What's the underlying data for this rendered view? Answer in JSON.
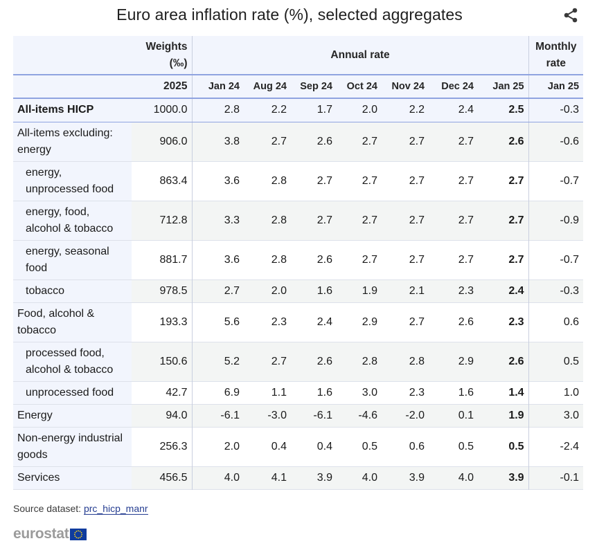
{
  "title": "Euro area inflation rate (%), selected aggregates",
  "icons": {
    "share": "share-icon",
    "flag": "eu-flag-icon"
  },
  "colors": {
    "header_bg": "#f2f5fd",
    "rule": "#8fa3e0",
    "shade": "#f3f5f4",
    "link": "#253d91"
  },
  "header": {
    "weights_label_1": "Weights",
    "weights_label_2": "(‰)",
    "annual_label": "Annual rate",
    "monthly_label_1": "Monthly",
    "monthly_label_2": "rate",
    "weights_year": "2025",
    "columns": [
      "Jan 24",
      "Aug 24",
      "Sep 24",
      "Oct 24",
      "Nov 24",
      "Dec 24",
      "Jan 25",
      "Jan 25"
    ]
  },
  "chart_data": {
    "type": "table",
    "title": "Euro area inflation rate (%), selected aggregates",
    "columns": [
      "Weights (‰) 2025",
      "Jan 24",
      "Aug 24",
      "Sep 24",
      "Oct 24",
      "Nov 24",
      "Dec 24",
      "Jan 25",
      "Monthly rate Jan 25"
    ],
    "rows": [
      {
        "label_1": "All-items HICP",
        "label_2": "",
        "level": "top",
        "values": [
          "1000.0",
          "2.8",
          "2.2",
          "1.7",
          "2.0",
          "2.2",
          "2.4",
          "2.5",
          "-0.3"
        ]
      },
      {
        "label_1": "All-items excluding:",
        "label_2": "energy",
        "level": "group",
        "values": [
          "906.0",
          "3.8",
          "2.7",
          "2.6",
          "2.7",
          "2.7",
          "2.7",
          "2.6",
          "-0.6"
        ]
      },
      {
        "label_1": "energy,",
        "label_2": "unprocessed food",
        "level": "sub",
        "values": [
          "863.4",
          "3.6",
          "2.8",
          "2.7",
          "2.7",
          "2.7",
          "2.7",
          "2.7",
          "-0.7"
        ]
      },
      {
        "label_1": "energy, food,",
        "label_2": "alcohol & tobacco",
        "level": "sub",
        "values": [
          "712.8",
          "3.3",
          "2.8",
          "2.7",
          "2.7",
          "2.7",
          "2.7",
          "2.7",
          "-0.9"
        ]
      },
      {
        "label_1": "energy, seasonal",
        "label_2": "food",
        "level": "sub",
        "values": [
          "881.7",
          "3.6",
          "2.8",
          "2.6",
          "2.7",
          "2.7",
          "2.7",
          "2.7",
          "-0.7"
        ]
      },
      {
        "label_1": "tobacco",
        "label_2": "",
        "level": "sub",
        "values": [
          "978.5",
          "2.7",
          "2.0",
          "1.6",
          "1.9",
          "2.1",
          "2.3",
          "2.4",
          "-0.3"
        ]
      },
      {
        "label_1": "Food, alcohol &",
        "label_2": "tobacco",
        "level": "group",
        "values": [
          "193.3",
          "5.6",
          "2.3",
          "2.4",
          "2.9",
          "2.7",
          "2.6",
          "2.3",
          "0.6"
        ]
      },
      {
        "label_1": "processed food,",
        "label_2": "alcohol & tobacco",
        "level": "sub",
        "values": [
          "150.6",
          "5.2",
          "2.7",
          "2.6",
          "2.8",
          "2.8",
          "2.9",
          "2.6",
          "0.5"
        ]
      },
      {
        "label_1": "unprocessed food",
        "label_2": "",
        "level": "sub",
        "values": [
          "42.7",
          "6.9",
          "1.1",
          "1.6",
          "3.0",
          "2.3",
          "1.6",
          "1.4",
          "1.0"
        ]
      },
      {
        "label_1": "Energy",
        "label_2": "",
        "level": "group",
        "values": [
          "94.0",
          "-6.1",
          "-3.0",
          "-6.1",
          "-4.6",
          "-2.0",
          "0.1",
          "1.9",
          "3.0"
        ]
      },
      {
        "label_1": "Non-energy industrial",
        "label_2": "goods",
        "level": "group",
        "values": [
          "256.3",
          "2.0",
          "0.4",
          "0.4",
          "0.5",
          "0.6",
          "0.5",
          "0.5",
          "-2.4"
        ]
      },
      {
        "label_1": "Services",
        "label_2": "",
        "level": "group",
        "values": [
          "456.5",
          "4.0",
          "4.1",
          "3.9",
          "4.0",
          "3.9",
          "4.0",
          "3.9",
          "-0.1"
        ]
      }
    ]
  },
  "footer": {
    "source_prefix": "Source dataset: ",
    "source_link": "prc_hicp_manr",
    "logo_text": "eurostat"
  }
}
